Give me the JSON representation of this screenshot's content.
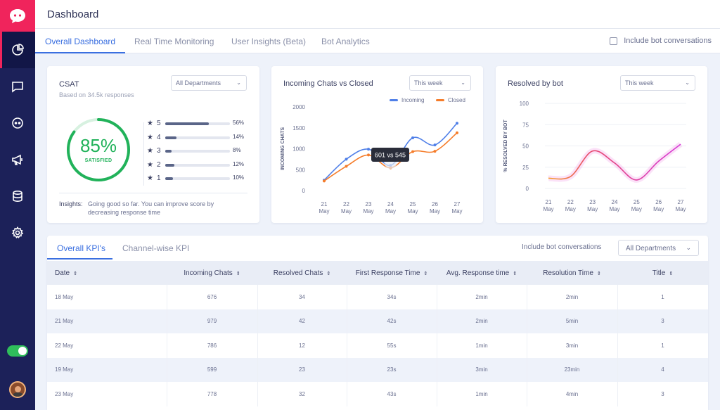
{
  "header": {
    "title": "Dashboard"
  },
  "tabs": [
    {
      "label": "Overall Dashboard",
      "active": true
    },
    {
      "label": "Real Time Monitoring"
    },
    {
      "label": "User Insights (Beta)"
    },
    {
      "label": "Bot Analytics"
    }
  ],
  "include_bot_label": "Include bot conversations",
  "sidebar": {
    "items": [
      "analytics-icon",
      "chat-icon",
      "bot-icon",
      "megaphone-icon",
      "database-icon",
      "gear-icon"
    ],
    "toggle_on": true
  },
  "csat": {
    "title": "CSAT",
    "subtitle": "Based on 34.5k responses",
    "dropdown": "All Departments",
    "score": "85%",
    "score_value": 85,
    "score_label": "SATISFIED",
    "ratings": [
      {
        "star": "5",
        "pct": "56%",
        "value": 56
      },
      {
        "star": "4",
        "pct": "14%",
        "value": 14
      },
      {
        "star": "3",
        "pct": "8%",
        "value": 8
      },
      {
        "star": "2",
        "pct": "12%",
        "value": 12
      },
      {
        "star": "1",
        "pct": "10%",
        "value": 10
      }
    ],
    "insights_label": "Insights:",
    "insights_text": "Going good so far. You can improve score by decreasing response time"
  },
  "incoming_chart": {
    "title": "Incoming Chats vs Closed",
    "dropdown": "This week",
    "tooltip": "601 vs 545"
  },
  "resolved_chart": {
    "title": "Resolved by bot",
    "dropdown": "This week"
  },
  "chart_data": [
    {
      "type": "line",
      "title": "Incoming Chats vs Closed",
      "ylabel": "INCOMING CHATS",
      "x": [
        [
          "21",
          "May"
        ],
        [
          "22",
          "May"
        ],
        [
          "23",
          "May"
        ],
        [
          "24",
          "May"
        ],
        [
          "25",
          "May"
        ],
        [
          "26",
          "May"
        ],
        [
          "27",
          "May"
        ]
      ],
      "yticks": [
        0,
        500,
        1000,
        1500,
        2000
      ],
      "ylim": [
        0,
        2000
      ],
      "series": [
        {
          "name": "Incoming",
          "color": "#4f7fe8",
          "values": [
            250,
            750,
            990,
            601,
            1260,
            1090,
            1610
          ]
        },
        {
          "name": "Closed",
          "color": "#f57c2a",
          "values": [
            230,
            580,
            850,
            545,
            930,
            940,
            1380
          ]
        }
      ],
      "legend": "top-right",
      "grid": false
    },
    {
      "type": "line",
      "title": "Resolved by bot",
      "ylabel": "% RESOLVED BY BOT",
      "x": [
        [
          "21",
          "May"
        ],
        [
          "22",
          "May"
        ],
        [
          "23",
          "May"
        ],
        [
          "24",
          "May"
        ],
        [
          "25",
          "May"
        ],
        [
          "26",
          "May"
        ],
        [
          "27",
          "May"
        ]
      ],
      "yticks": [
        0,
        25,
        50,
        75,
        100
      ],
      "ylim": [
        0,
        100
      ],
      "series": [
        {
          "color": "#e23ad0",
          "values": [
            12,
            14,
            44,
            30,
            10,
            32,
            52
          ]
        }
      ],
      "grid": true
    }
  ],
  "kpi": {
    "tabs": [
      {
        "label": "Overall KPI's",
        "active": true
      },
      {
        "label": "Channel-wise KPI"
      }
    ],
    "include_bot_label": "Include bot conversations",
    "dropdown": "All Departments",
    "columns": [
      "Date",
      "Incoming Chats",
      "Resolved Chats",
      "First Response Time",
      "Avg. Response time",
      "Resolution Time",
      "Title"
    ],
    "rows": [
      [
        "18 May",
        "676",
        "34",
        "34s",
        "2min",
        "2min",
        "1"
      ],
      [
        "21 May",
        "979",
        "42",
        "42s",
        "2min",
        "5min",
        "3"
      ],
      [
        "22 May",
        "786",
        "12",
        "55s",
        "1min",
        "3min",
        "1"
      ],
      [
        "19 May",
        "599",
        "23",
        "23s",
        "3min",
        "23min",
        "4"
      ],
      [
        "23 May",
        "778",
        "32",
        "43s",
        "1min",
        "4min",
        "3"
      ]
    ]
  },
  "colors": {
    "sidebar": "#1c2159",
    "brand": "#f0245c",
    "accent": "#3a6fe0",
    "success": "#21b25a"
  }
}
